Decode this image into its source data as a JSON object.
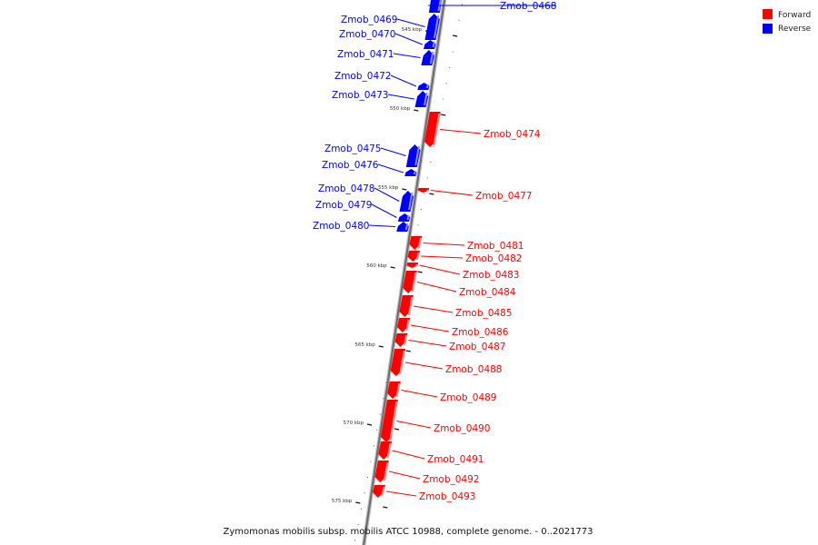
{
  "caption": "Zymomonas mobilis subsp. mobilis ATCC 10988, complete genome. - 0..2021773",
  "legend": [
    {
      "label": "Forward",
      "color": "#ff0000"
    },
    {
      "label": "Reverse",
      "color": "#0000ff"
    }
  ],
  "ticks": [
    "545 kbp",
    "550 kbp",
    "555 kbp",
    "560 kbp",
    "565 kbp",
    "570 kbp",
    "575 kbp"
  ],
  "genes": [
    {
      "name": "Zmob_0468",
      "strand": "reverse"
    },
    {
      "name": "Zmob_0469",
      "strand": "reverse"
    },
    {
      "name": "Zmob_0470",
      "strand": "reverse"
    },
    {
      "name": "Zmob_0471",
      "strand": "reverse"
    },
    {
      "name": "Zmob_0472",
      "strand": "reverse"
    },
    {
      "name": "Zmob_0473",
      "strand": "reverse"
    },
    {
      "name": "Zmob_0474",
      "strand": "forward"
    },
    {
      "name": "Zmob_0475",
      "strand": "reverse"
    },
    {
      "name": "Zmob_0476",
      "strand": "reverse"
    },
    {
      "name": "Zmob_0477",
      "strand": "forward"
    },
    {
      "name": "Zmob_0478",
      "strand": "reverse"
    },
    {
      "name": "Zmob_0479",
      "strand": "reverse"
    },
    {
      "name": "Zmob_0480",
      "strand": "reverse"
    },
    {
      "name": "Zmob_0481",
      "strand": "forward"
    },
    {
      "name": "Zmob_0482",
      "strand": "forward"
    },
    {
      "name": "Zmob_0483",
      "strand": "forward"
    },
    {
      "name": "Zmob_0484",
      "strand": "forward"
    },
    {
      "name": "Zmob_0485",
      "strand": "forward"
    },
    {
      "name": "Zmob_0486",
      "strand": "forward"
    },
    {
      "name": "Zmob_0487",
      "strand": "forward"
    },
    {
      "name": "Zmob_0488",
      "strand": "forward"
    },
    {
      "name": "Zmob_0489",
      "strand": "forward"
    },
    {
      "name": "Zmob_0490",
      "strand": "forward"
    },
    {
      "name": "Zmob_0491",
      "strand": "forward"
    },
    {
      "name": "Zmob_0492",
      "strand": "forward"
    },
    {
      "name": "Zmob_0493",
      "strand": "forward"
    }
  ]
}
